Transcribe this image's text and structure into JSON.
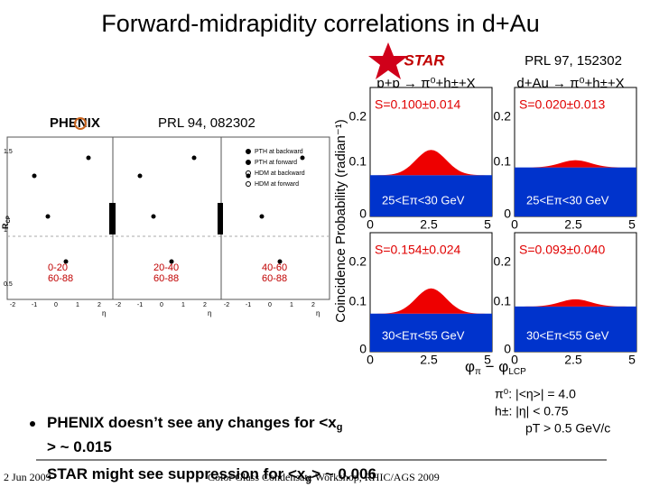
{
  "title": "Forward-midrapidity correlations in d+Au",
  "star_logo": "STAR",
  "star_ref": "PRL 97, 152302",
  "phenix": {
    "logo_left": "PH",
    "logo_right": "ENIX",
    "ref": "PRL 94, 082302",
    "y_label": "R",
    "y_label_sub": "CP",
    "yticks": [
      "1.5",
      "1",
      "0.5"
    ],
    "xticks": [
      "-2",
      "-1",
      "0",
      "1",
      "2"
    ],
    "x_label": "η",
    "legend": [
      "PTH at backward",
      "PTH at forward",
      "HDM at backward",
      "HDM at forward"
    ],
    "panels": [
      [
        "0-20",
        "60-88"
      ],
      [
        "20-40",
        "60-88"
      ],
      [
        "40-60",
        "60-88"
      ]
    ]
  },
  "star": {
    "y_label": "Coincidence Probability (radian⁻¹)",
    "x_label": [
      "φ",
      "π",
      " − φ",
      "LCP"
    ],
    "columns": [
      "p+p → π⁰+h±+X",
      "d+Au → π⁰+h±+X"
    ],
    "yticks": [
      "0.2",
      "0.1",
      "0"
    ],
    "xticks": [
      "0",
      "2.5",
      "5"
    ],
    "panels": [
      {
        "s": "S=0.100±0.014",
        "range": "25<Eπ<30 GeV"
      },
      {
        "s": "S=0.020±0.013",
        "range": "25<Eπ<30 GeV"
      },
      {
        "s": "S=0.154±0.024",
        "range": "30<Eπ<55 GeV"
      },
      {
        "s": "S=0.093±0.040",
        "range": "30<Eπ<55 GeV"
      }
    ]
  },
  "cuts": [
    "π⁰:  |<η>| = 4.0",
    "h±:  |η| < 0.75",
    "pT > 0.5 GeV/c"
  ],
  "bullets": [
    [
      "PHENIX doesn’t see any changes for <x",
      "g",
      "> ~ 0.015"
    ],
    [
      "STAR might see suppression for <x",
      "g",
      "> ~ 0.006"
    ]
  ],
  "footer": {
    "date": "2 Jun 2009",
    "event": "Color Glass Condensate Workshop, RHIC/AGS 2009"
  }
}
